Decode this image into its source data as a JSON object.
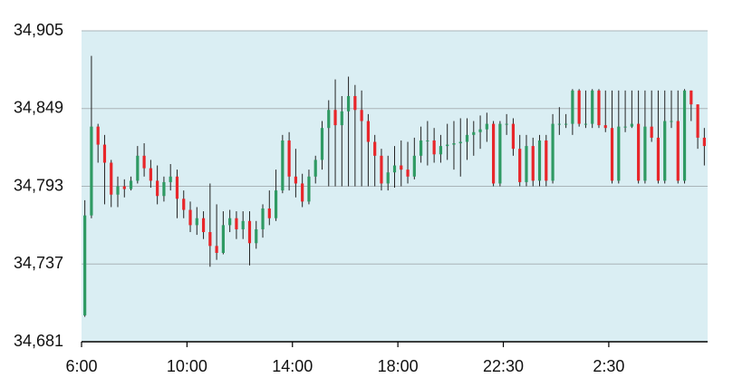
{
  "chart_data": {
    "type": "candlestick",
    "categories": [
      "6:00",
      null,
      null,
      null,
      null,
      null,
      null,
      null,
      null,
      null,
      null,
      null,
      null,
      null,
      null,
      null,
      "10:00",
      null,
      null,
      null,
      null,
      null,
      null,
      null,
      null,
      null,
      null,
      null,
      null,
      null,
      null,
      null,
      "14:00",
      null,
      null,
      null,
      null,
      null,
      null,
      null,
      null,
      null,
      null,
      null,
      null,
      null,
      null,
      null,
      "18:00",
      null,
      null,
      null,
      null,
      null,
      null,
      null,
      null,
      null,
      null,
      null,
      null,
      null,
      null,
      null,
      "22:30",
      null,
      null,
      null,
      null,
      null,
      null,
      null,
      null,
      null,
      null,
      null,
      null,
      null,
      null,
      null,
      "2:30",
      null,
      null,
      null,
      null,
      null,
      null,
      null,
      null,
      null,
      null,
      null,
      null,
      null,
      null
    ],
    "open": [
      34700,
      34772,
      34836,
      34823,
      34810,
      34787,
      34793,
      34791,
      34797,
      34815,
      34806,
      34797,
      34786,
      34796,
      34800,
      34784,
      34776,
      34765,
      34770,
      34760,
      34750,
      34745,
      34765,
      34770,
      34762,
      34768,
      34752,
      34762,
      34777,
      34770,
      34790,
      34826,
      34800,
      34795,
      34782,
      34800,
      34812,
      34835,
      34848,
      34837,
      34847,
      34858,
      34848,
      34840,
      34825,
      34815,
      34795,
      34803,
      34808,
      34805,
      34800,
      34815,
      34826,
      34826,
      34816,
      34822,
      34823,
      34824,
      34825,
      34830,
      34832,
      34834,
      34838,
      34795,
      34838,
      34838,
      34820,
      34796,
      34822,
      34797,
      34826,
      34797,
      34838,
      34838,
      34838,
      34862,
      34838,
      34838,
      34862,
      34837,
      34835,
      34797,
      34836,
      34836,
      34838,
      34797,
      34836,
      34828,
      34797,
      34840,
      34840,
      34797,
      34862,
      34852,
      34828
    ],
    "high": [
      34783,
      34887,
      34838,
      34830,
      34812,
      34800,
      34798,
      34800,
      34822,
      34824,
      34812,
      34808,
      34800,
      34809,
      34805,
      34790,
      34782,
      34778,
      34775,
      34795,
      34780,
      34775,
      34776,
      34775,
      34775,
      34775,
      34768,
      34780,
      34790,
      34805,
      34830,
      34832,
      34820,
      34802,
      34805,
      34815,
      34840,
      34855,
      34870,
      34858,
      34872,
      34866,
      34862,
      34845,
      34830,
      34820,
      34815,
      34822,
      34826,
      34825,
      34828,
      34836,
      34840,
      34835,
      34830,
      34838,
      34840,
      34842,
      34842,
      34840,
      34844,
      34846,
      34840,
      34840,
      34845,
      34842,
      34830,
      34830,
      34828,
      34830,
      34830,
      34845,
      34850,
      34845,
      34863,
      34863,
      34862,
      34863,
      34863,
      34862,
      34862,
      34862,
      34862,
      34862,
      34862,
      34862,
      34862,
      34862,
      34862,
      34862,
      34862,
      34863,
      34862,
      34852,
      34835
    ],
    "low": [
      34699,
      34770,
      34810,
      34780,
      34778,
      34778,
      34785,
      34790,
      34795,
      34800,
      34792,
      34780,
      34782,
      34790,
      34770,
      34770,
      34760,
      34758,
      34755,
      34735,
      34740,
      34744,
      34760,
      34755,
      34755,
      34736,
      34748,
      34756,
      34765,
      34768,
      34788,
      34790,
      34785,
      34778,
      34780,
      34795,
      34805,
      34793,
      34793,
      34793,
      34793,
      34793,
      34793,
      34793,
      34793,
      34790,
      34790,
      34792,
      34793,
      34795,
      34798,
      34810,
      34808,
      34810,
      34810,
      34812,
      34805,
      34800,
      34812,
      34815,
      34820,
      34825,
      34793,
      34793,
      34830,
      34815,
      34793,
      34793,
      34793,
      34793,
      34793,
      34795,
      34830,
      34835,
      34830,
      34836,
      34835,
      34835,
      34835,
      34832,
      34795,
      34795,
      34832,
      34835,
      34795,
      34795,
      34825,
      34795,
      34795,
      34835,
      34795,
      34795,
      34840,
      34820,
      34808
    ],
    "close": [
      34772,
      34836,
      34823,
      34810,
      34787,
      34793,
      34791,
      34797,
      34815,
      34806,
      34797,
      34786,
      34796,
      34800,
      34784,
      34776,
      34765,
      34770,
      34760,
      34750,
      34745,
      34765,
      34770,
      34762,
      34768,
      34752,
      34762,
      34777,
      34770,
      34790,
      34826,
      34800,
      34795,
      34782,
      34800,
      34812,
      34835,
      34848,
      34837,
      34847,
      34858,
      34848,
      34840,
      34825,
      34815,
      34795,
      34803,
      34808,
      34805,
      34800,
      34815,
      34826,
      34826,
      34816,
      34822,
      34823,
      34824,
      34825,
      34830,
      34832,
      34834,
      34838,
      34795,
      34838,
      34838,
      34820,
      34796,
      34822,
      34797,
      34826,
      34797,
      34838,
      34838,
      34838,
      34862,
      34838,
      34838,
      34862,
      34837,
      34835,
      34797,
      34836,
      34836,
      34838,
      34797,
      34836,
      34828,
      34797,
      34840,
      34840,
      34797,
      34862,
      34852,
      34828,
      34822
    ],
    "up_color": "#2f9a63",
    "down_color": "#e8262a",
    "ylim": [
      34681,
      34905
    ],
    "yticks": [
      {
        "value": 34681,
        "label": "34,681"
      },
      {
        "value": 34737,
        "label": "34,737"
      },
      {
        "value": 34793,
        "label": "34,793"
      },
      {
        "value": 34849,
        "label": "34,849"
      },
      {
        "value": 34905,
        "label": "34,905"
      }
    ],
    "grid": true
  }
}
